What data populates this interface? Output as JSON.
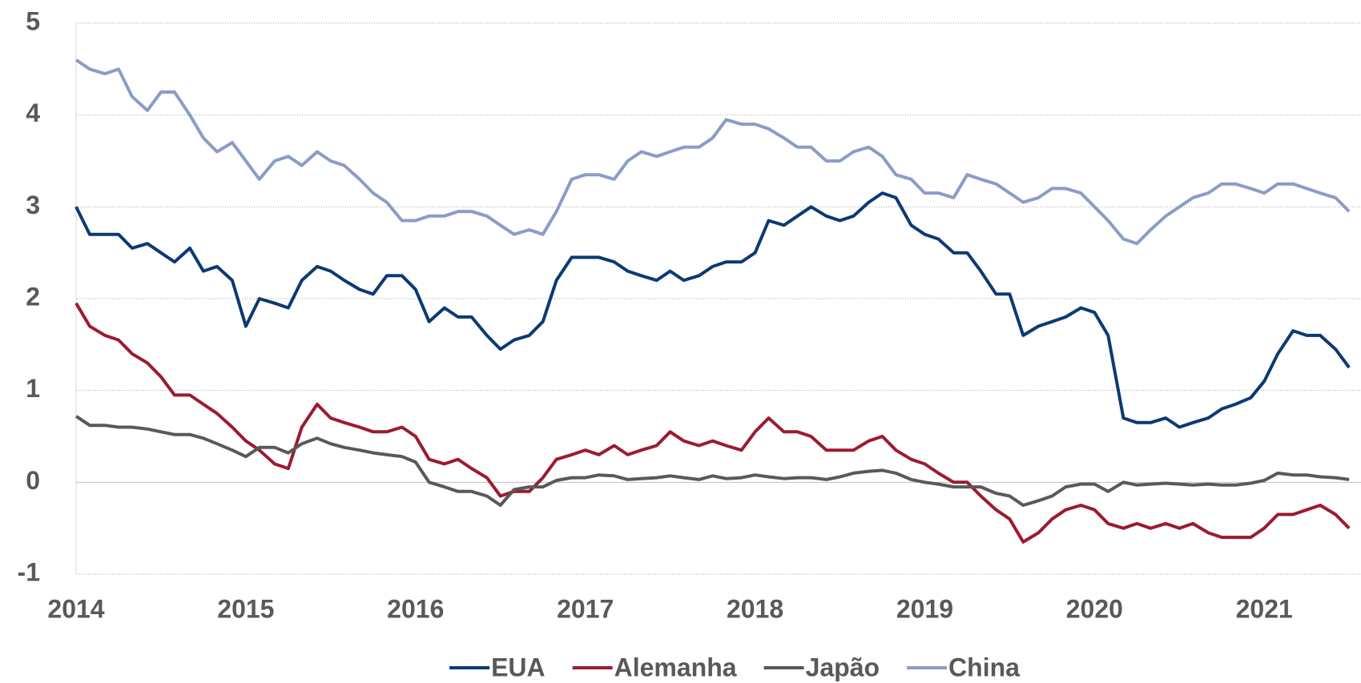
{
  "chart_data": {
    "type": "line",
    "x": [
      2014,
      2014.08,
      2014.17,
      2014.25,
      2014.33,
      2014.42,
      2014.5,
      2014.58,
      2014.67,
      2014.75,
      2014.83,
      2014.92,
      2015,
      2015.08,
      2015.17,
      2015.25,
      2015.33,
      2015.42,
      2015.5,
      2015.58,
      2015.67,
      2015.75,
      2015.83,
      2015.92,
      2016,
      2016.08,
      2016.17,
      2016.25,
      2016.33,
      2016.42,
      2016.5,
      2016.58,
      2016.67,
      2016.75,
      2016.83,
      2016.92,
      2017,
      2017.08,
      2017.17,
      2017.25,
      2017.33,
      2017.42,
      2017.5,
      2017.58,
      2017.67,
      2017.75,
      2017.83,
      2017.92,
      2018,
      2018.08,
      2018.17,
      2018.25,
      2018.33,
      2018.42,
      2018.5,
      2018.58,
      2018.67,
      2018.75,
      2018.83,
      2018.92,
      2019,
      2019.08,
      2019.17,
      2019.25,
      2019.33,
      2019.42,
      2019.5,
      2019.58,
      2019.67,
      2019.75,
      2019.83,
      2019.92,
      2020,
      2020.08,
      2020.17,
      2020.25,
      2020.33,
      2020.42,
      2020.5,
      2020.58,
      2020.67,
      2020.75,
      2020.83,
      2020.92,
      2021,
      2021.08,
      2021.17,
      2021.25,
      2021.33,
      2021.42,
      2021.5
    ],
    "series": [
      {
        "name": "EUA",
        "color": "#0b3a73",
        "values": [
          3.0,
          2.7,
          2.7,
          2.7,
          2.55,
          2.6,
          2.5,
          2.4,
          2.55,
          2.3,
          2.35,
          2.2,
          1.7,
          2.0,
          1.95,
          1.9,
          2.2,
          2.35,
          2.3,
          2.2,
          2.1,
          2.05,
          2.25,
          2.25,
          2.1,
          1.75,
          1.9,
          1.8,
          1.8,
          1.6,
          1.45,
          1.55,
          1.6,
          1.75,
          2.2,
          2.45,
          2.45,
          2.45,
          2.4,
          2.3,
          2.25,
          2.2,
          2.3,
          2.2,
          2.25,
          2.35,
          2.4,
          2.4,
          2.5,
          2.85,
          2.8,
          2.9,
          3.0,
          2.9,
          2.85,
          2.9,
          3.05,
          3.15,
          3.1,
          2.8,
          2.7,
          2.65,
          2.5,
          2.5,
          2.3,
          2.05,
          2.05,
          1.6,
          1.7,
          1.75,
          1.8,
          1.9,
          1.85,
          1.6,
          0.7,
          0.65,
          0.65,
          0.7,
          0.6,
          0.65,
          0.7,
          0.8,
          0.85,
          0.92,
          1.1,
          1.4,
          1.65,
          1.6,
          1.6,
          1.45,
          1.25
        ]
      },
      {
        "name": "Alemanha",
        "color": "#9b1b30",
        "values": [
          1.95,
          1.7,
          1.6,
          1.55,
          1.4,
          1.3,
          1.15,
          0.95,
          0.95,
          0.85,
          0.75,
          0.6,
          0.45,
          0.35,
          0.2,
          0.15,
          0.6,
          0.85,
          0.7,
          0.65,
          0.6,
          0.55,
          0.55,
          0.6,
          0.5,
          0.25,
          0.2,
          0.25,
          0.15,
          0.05,
          -0.15,
          -0.1,
          -0.1,
          0.05,
          0.25,
          0.3,
          0.35,
          0.3,
          0.4,
          0.3,
          0.35,
          0.4,
          0.55,
          0.45,
          0.4,
          0.45,
          0.4,
          0.35,
          0.55,
          0.7,
          0.55,
          0.55,
          0.5,
          0.35,
          0.35,
          0.35,
          0.45,
          0.5,
          0.35,
          0.25,
          0.2,
          0.1,
          0.0,
          0.0,
          -0.15,
          -0.3,
          -0.4,
          -0.65,
          -0.55,
          -0.4,
          -0.3,
          -0.25,
          -0.3,
          -0.45,
          -0.5,
          -0.45,
          -0.5,
          -0.45,
          -0.5,
          -0.45,
          -0.55,
          -0.6,
          -0.6,
          -0.6,
          -0.5,
          -0.35,
          -0.35,
          -0.3,
          -0.25,
          -0.35,
          -0.5
        ]
      },
      {
        "name": "Japão",
        "color": "#595959",
        "values": [
          0.72,
          0.62,
          0.62,
          0.6,
          0.6,
          0.58,
          0.55,
          0.52,
          0.52,
          0.48,
          0.42,
          0.35,
          0.28,
          0.38,
          0.38,
          0.32,
          0.42,
          0.48,
          0.42,
          0.38,
          0.35,
          0.32,
          0.3,
          0.28,
          0.22,
          0.0,
          -0.05,
          -0.1,
          -0.1,
          -0.15,
          -0.25,
          -0.08,
          -0.05,
          -0.05,
          0.02,
          0.05,
          0.05,
          0.08,
          0.07,
          0.03,
          0.04,
          0.05,
          0.07,
          0.05,
          0.03,
          0.07,
          0.04,
          0.05,
          0.08,
          0.06,
          0.04,
          0.05,
          0.05,
          0.03,
          0.06,
          0.1,
          0.12,
          0.13,
          0.1,
          0.03,
          0.0,
          -0.02,
          -0.05,
          -0.05,
          -0.05,
          -0.12,
          -0.15,
          -0.25,
          -0.2,
          -0.15,
          -0.05,
          -0.02,
          -0.02,
          -0.1,
          0.0,
          -0.03,
          -0.02,
          -0.01,
          -0.02,
          -0.03,
          -0.02,
          -0.03,
          -0.03,
          -0.01,
          0.02,
          0.1,
          0.08,
          0.08,
          0.06,
          0.05,
          0.03
        ]
      },
      {
        "name": "China",
        "color": "#8b9cc8",
        "values": [
          4.6,
          4.5,
          4.45,
          4.5,
          4.2,
          4.05,
          4.25,
          4.25,
          4.0,
          3.75,
          3.6,
          3.7,
          3.5,
          3.3,
          3.5,
          3.55,
          3.45,
          3.6,
          3.5,
          3.45,
          3.3,
          3.15,
          3.05,
          2.85,
          2.85,
          2.9,
          2.9,
          2.95,
          2.95,
          2.9,
          2.8,
          2.7,
          2.75,
          2.7,
          2.95,
          3.3,
          3.35,
          3.35,
          3.3,
          3.5,
          3.6,
          3.55,
          3.6,
          3.65,
          3.65,
          3.75,
          3.95,
          3.9,
          3.9,
          3.85,
          3.75,
          3.65,
          3.65,
          3.5,
          3.5,
          3.6,
          3.65,
          3.55,
          3.35,
          3.3,
          3.15,
          3.15,
          3.1,
          3.35,
          3.3,
          3.25,
          3.15,
          3.05,
          3.1,
          3.2,
          3.2,
          3.15,
          3.0,
          2.85,
          2.65,
          2.6,
          2.75,
          2.9,
          3.0,
          3.1,
          3.15,
          3.25,
          3.25,
          3.2,
          3.15,
          3.25,
          3.25,
          3.2,
          3.15,
          3.1,
          2.95
        ]
      }
    ],
    "xlim": [
      2014,
      2021.57
    ],
    "xticks": [
      2014,
      2015,
      2016,
      2017,
      2018,
      2019,
      2020,
      2021
    ],
    "ylim": [
      -1,
      5
    ],
    "yticks": [
      -1,
      0,
      1,
      2,
      3,
      4,
      5
    ],
    "grid": true,
    "legend": "bottom"
  }
}
